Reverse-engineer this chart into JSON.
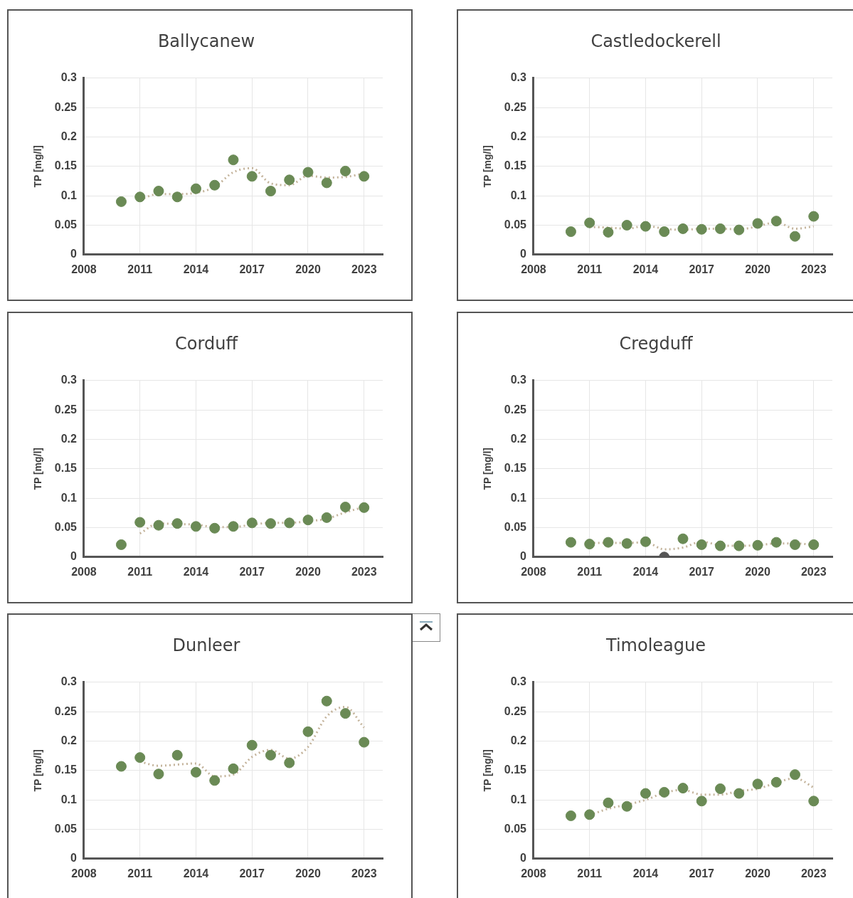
{
  "chart_data": [
    {
      "type": "scatter",
      "title": "Ballycanew",
      "ylabel": "TP [mg/l]",
      "xlim": [
        2008,
        2024
      ],
      "xticks": [
        2008,
        2011,
        2014,
        2017,
        2020,
        2023
      ],
      "ylim": [
        0,
        0.3
      ],
      "yticks": [
        0,
        0.05,
        0.1,
        0.15,
        0.2,
        0.25,
        0.3
      ],
      "grid": true,
      "series": [
        {
          "marker": "circle",
          "color": "#6a8a55",
          "x": [
            2010,
            2011,
            2012,
            2013,
            2014,
            2015,
            2016,
            2017,
            2018,
            2019,
            2020,
            2021,
            2022,
            2023
          ],
          "values": [
            0.09,
            0.098,
            0.108,
            0.098,
            0.112,
            0.118,
            0.161,
            0.133,
            0.108,
            0.127,
            0.14,
            0.122,
            0.142,
            0.133
          ]
        },
        {
          "type": "line",
          "color": "#c4b49c",
          "line_style": "dotted",
          "x": [
            2011,
            2012,
            2013,
            2014,
            2015,
            2016,
            2017,
            2018,
            2019,
            2020,
            2021,
            2022,
            2023
          ],
          "values": [
            0.094,
            0.103,
            0.103,
            0.105,
            0.115,
            0.14,
            0.147,
            0.121,
            0.118,
            0.134,
            0.131,
            0.132,
            0.138
          ]
        }
      ]
    },
    {
      "type": "scatter",
      "title": "Castledockerell",
      "ylabel": "TP [mg/l]",
      "xlim": [
        2008,
        2024
      ],
      "xticks": [
        2008,
        2011,
        2014,
        2017,
        2020,
        2023
      ],
      "ylim": [
        0,
        0.3
      ],
      "yticks": [
        0,
        0.05,
        0.1,
        0.15,
        0.2,
        0.25,
        0.3
      ],
      "grid": true,
      "series": [
        {
          "marker": "circle",
          "color": "#6a8a55",
          "x": [
            2010,
            2011,
            2012,
            2013,
            2014,
            2015,
            2016,
            2017,
            2018,
            2019,
            2020,
            2021,
            2022,
            2023
          ],
          "values": [
            0.039,
            0.054,
            0.038,
            0.05,
            0.048,
            0.039,
            0.044,
            0.043,
            0.044,
            0.042,
            0.053,
            0.057,
            0.031,
            0.065
          ]
        },
        {
          "type": "line",
          "color": "#c4b49c",
          "line_style": "dotted",
          "x": [
            2011,
            2012,
            2013,
            2014,
            2015,
            2016,
            2017,
            2018,
            2019,
            2020,
            2021,
            2022,
            2023
          ],
          "values": [
            0.047,
            0.046,
            0.044,
            0.049,
            0.044,
            0.042,
            0.044,
            0.044,
            0.043,
            0.048,
            0.055,
            0.044,
            0.048
          ]
        }
      ]
    },
    {
      "type": "scatter",
      "title": "Corduff",
      "ylabel": "TP [mg/l]",
      "xlim": [
        2008,
        2024
      ],
      "xticks": [
        2008,
        2011,
        2014,
        2017,
        2020,
        2023
      ],
      "ylim": [
        0,
        0.3
      ],
      "yticks": [
        0,
        0.05,
        0.1,
        0.15,
        0.2,
        0.25,
        0.3
      ],
      "grid": true,
      "series": [
        {
          "marker": "circle",
          "color": "#6a8a55",
          "x": [
            2010,
            2011,
            2012,
            2013,
            2014,
            2015,
            2016,
            2017,
            2018,
            2019,
            2020,
            2021,
            2022,
            2023
          ],
          "values": [
            0.021,
            0.059,
            0.054,
            0.057,
            0.052,
            0.049,
            0.052,
            0.058,
            0.057,
            0.058,
            0.063,
            0.067,
            0.085,
            0.084
          ]
        },
        {
          "type": "line",
          "color": "#c4b49c",
          "line_style": "dotted",
          "x": [
            2011,
            2012,
            2013,
            2014,
            2015,
            2016,
            2017,
            2018,
            2019,
            2020,
            2021,
            2022,
            2023
          ],
          "values": [
            0.04,
            0.057,
            0.056,
            0.055,
            0.051,
            0.051,
            0.055,
            0.058,
            0.058,
            0.061,
            0.065,
            0.076,
            0.085
          ]
        }
      ]
    },
    {
      "type": "scatter",
      "title": "Cregduff",
      "ylabel": "TP [mg/l]",
      "xlim": [
        2008,
        2024
      ],
      "xticks": [
        2008,
        2011,
        2014,
        2017,
        2020,
        2023
      ],
      "ylim": [
        0,
        0.3
      ],
      "yticks": [
        0,
        0.05,
        0.1,
        0.15,
        0.2,
        0.25,
        0.3
      ],
      "grid": true,
      "series": [
        {
          "marker": "circle",
          "color": "#6a8a55",
          "colors": [
            null,
            null,
            null,
            null,
            null,
            "#555555",
            null,
            null,
            null,
            null,
            null,
            null,
            null,
            null
          ],
          "x": [
            2010,
            2011,
            2012,
            2013,
            2014,
            2015,
            2016,
            2017,
            2018,
            2019,
            2020,
            2021,
            2022,
            2023
          ],
          "values": [
            0.025,
            0.022,
            0.025,
            0.023,
            0.026,
            0,
            0.031,
            0.021,
            0.019,
            0.019,
            0.02,
            0.025,
            0.021,
            0.021
          ]
        },
        {
          "type": "line",
          "color": "#c4b49c",
          "line_style": "dotted",
          "x": [
            2011,
            2012,
            2013,
            2014,
            2015,
            2016,
            2017,
            2018,
            2019,
            2020,
            2021,
            2022,
            2023
          ],
          "values": [
            0.024,
            0.024,
            0.024,
            0.025,
            0.013,
            0.016,
            0.026,
            0.02,
            0.019,
            0.02,
            0.023,
            0.023,
            0.021
          ]
        }
      ]
    },
    {
      "type": "scatter",
      "title": "Dunleer",
      "ylabel": "TP [mg/l]",
      "xlim": [
        2008,
        2024
      ],
      "xticks": [
        2008,
        2011,
        2014,
        2017,
        2020,
        2023
      ],
      "ylim": [
        0,
        0.3
      ],
      "yticks": [
        0,
        0.05,
        0.1,
        0.15,
        0.2,
        0.25,
        0.3
      ],
      "grid": true,
      "series": [
        {
          "marker": "circle",
          "color": "#6a8a55",
          "x": [
            2010,
            2011,
            2012,
            2013,
            2014,
            2015,
            2016,
            2017,
            2018,
            2019,
            2020,
            2021,
            2022,
            2023
          ],
          "values": [
            0.157,
            0.172,
            0.144,
            0.176,
            0.147,
            0.133,
            0.153,
            0.193,
            0.176,
            0.163,
            0.216,
            0.268,
            0.247,
            0.198
          ]
        },
        {
          "type": "line",
          "color": "#c4b49c",
          "line_style": "dotted",
          "x": [
            2011,
            2012,
            2013,
            2014,
            2015,
            2016,
            2017,
            2018,
            2019,
            2020,
            2021,
            2022,
            2023
          ],
          "values": [
            0.165,
            0.158,
            0.16,
            0.162,
            0.14,
            0.143,
            0.173,
            0.185,
            0.17,
            0.19,
            0.242,
            0.258,
            0.223
          ]
        }
      ]
    },
    {
      "type": "scatter",
      "title": "Timoleague",
      "ylabel": "TP [mg/l]",
      "xlim": [
        2008,
        2024
      ],
      "xticks": [
        2008,
        2011,
        2014,
        2017,
        2020,
        2023
      ],
      "ylim": [
        0,
        0.3
      ],
      "yticks": [
        0,
        0.05,
        0.1,
        0.15,
        0.2,
        0.25,
        0.3
      ],
      "grid": true,
      "series": [
        {
          "marker": "circle",
          "color": "#6a8a55",
          "x": [
            2010,
            2011,
            2012,
            2013,
            2014,
            2015,
            2016,
            2017,
            2018,
            2019,
            2020,
            2021,
            2022,
            2023
          ],
          "values": [
            0.073,
            0.075,
            0.095,
            0.089,
            0.111,
            0.113,
            0.12,
            0.098,
            0.119,
            0.111,
            0.127,
            0.13,
            0.143,
            0.098
          ]
        },
        {
          "type": "line",
          "color": "#c4b49c",
          "line_style": "dotted",
          "x": [
            2011,
            2012,
            2013,
            2014,
            2015,
            2016,
            2017,
            2018,
            2019,
            2020,
            2021,
            2022,
            2023
          ],
          "values": [
            0.074,
            0.085,
            0.092,
            0.1,
            0.112,
            0.117,
            0.109,
            0.109,
            0.115,
            0.119,
            0.129,
            0.137,
            0.121
          ]
        }
      ]
    }
  ]
}
